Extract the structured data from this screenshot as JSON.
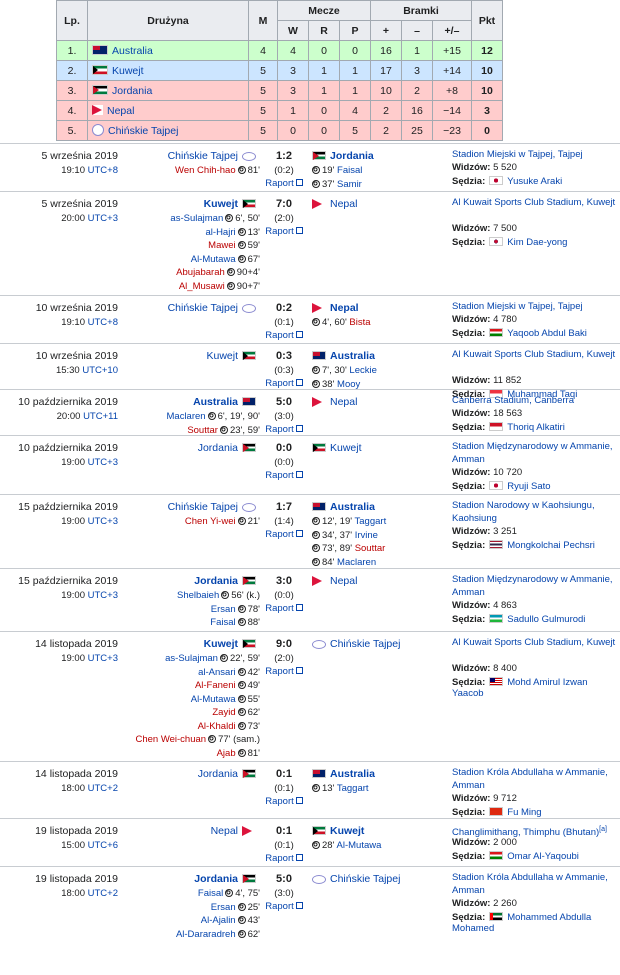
{
  "standings": {
    "headers": {
      "lp": "Lp.",
      "team": "Drużyna",
      "m": "M",
      "mecze": "Mecze",
      "w": "W",
      "r": "R",
      "p": "P",
      "bramki": "Bramki",
      "plus": "+",
      "minus": "–",
      "diff": "+/–",
      "pkt": "Pkt"
    },
    "rows": [
      {
        "lp": "1.",
        "team": "Australia",
        "flag": "aus",
        "m": "4",
        "w": "4",
        "r": "0",
        "p": "0",
        "gf": "16",
        "ga": "1",
        "diff": "+15",
        "pkt": "12",
        "color": "#ccffcc"
      },
      {
        "lp": "2.",
        "team": "Kuwejt",
        "flag": "kuw",
        "m": "5",
        "w": "3",
        "r": "1",
        "p": "1",
        "gf": "17",
        "ga": "3",
        "diff": "+14",
        "pkt": "10",
        "color": "#cce5ff"
      },
      {
        "lp": "3.",
        "team": "Jordania",
        "flag": "jor",
        "m": "5",
        "w": "3",
        "r": "1",
        "p": "1",
        "gf": "10",
        "ga": "2",
        "diff": "+8",
        "pkt": "10",
        "color": "#ffcccc"
      },
      {
        "lp": "4.",
        "team": "Nepal",
        "flag": "nep",
        "m": "5",
        "w": "1",
        "r": "0",
        "p": "4",
        "gf": "2",
        "ga": "16",
        "diff": "−14",
        "pkt": "3",
        "color": "#ffcccc"
      },
      {
        "lp": "5.",
        "team": "Chińskie Tajpej",
        "flag": "tpe",
        "m": "5",
        "w": "0",
        "r": "0",
        "p": "5",
        "gf": "2",
        "ga": "25",
        "diff": "−23",
        "pkt": "0",
        "color": "#ffcccc"
      }
    ]
  },
  "matches": [
    {
      "date": "5 września 2019",
      "time": "19:10",
      "tz": "UTC+8",
      "home": "Chińskie Tajpej",
      "home_flag": "tpe",
      "home_bold": false,
      "away": "Jordania",
      "away_flag": "jor",
      "away_bold": true,
      "score": "1:2",
      "ht": "(0:2)",
      "report": "Raport",
      "home_scorers": [
        {
          "name": "Wen Chih-hao",
          "min": "81'",
          "red": true
        }
      ],
      "away_scorers": [
        {
          "name": "Faisal",
          "min": "19'",
          "red": false
        },
        {
          "name": "Samir",
          "min": "37'",
          "red": false
        }
      ],
      "venue": "Stadion Miejski w Tajpej, Tajpej",
      "att_label": "Widzów:",
      "att": "5 520",
      "ref_label": "Sędzia:",
      "ref": "Yusuke Araki",
      "ref_flag": "jpn"
    },
    {
      "date": "5 września 2019",
      "time": "20:00",
      "tz": "UTC+3",
      "home": "Kuwejt",
      "home_flag": "kuw",
      "home_bold": true,
      "away": "Nepal",
      "away_flag": "nep",
      "away_bold": false,
      "score": "7:0",
      "ht": "(2:0)",
      "report": "Raport",
      "home_scorers": [
        {
          "name": "as-Sulajman",
          "min": "6', 50'",
          "red": false
        },
        {
          "name": "al-Hajri",
          "min": "13'",
          "red": false
        },
        {
          "name": "Mawei",
          "min": "59'",
          "red": true
        },
        {
          "name": "Al-Mutawa",
          "min": "67'",
          "red": false
        },
        {
          "name": "Abujabarah",
          "min": "90+4'",
          "red": true
        },
        {
          "name": "Al_Musawi",
          "min": "90+7'",
          "red": true
        }
      ],
      "away_scorers": [],
      "venue": "Al Kuwait Sports Club Stadium, Kuwejt",
      "att_label": "Widzów:",
      "att": "7 500",
      "ref_label": "Sędzia:",
      "ref": "Kim Dae-yong",
      "ref_flag": "kor"
    },
    {
      "date": "10 września 2019",
      "time": "19:10",
      "tz": "UTC+8",
      "home": "Chińskie Tajpej",
      "home_flag": "tpe",
      "home_bold": false,
      "away": "Nepal",
      "away_flag": "nep",
      "away_bold": true,
      "score": "0:2",
      "ht": "(0:1)",
      "report": "Raport",
      "home_scorers": [],
      "away_scorers": [
        {
          "name": "Bista",
          "min": "4', 60'",
          "red": true
        }
      ],
      "venue": "Stadion Miejski w Tajpej, Tajpej",
      "att_label": "Widzów:",
      "att": "4 780",
      "ref_label": "Sędzia:",
      "ref": "Yaqoob Abdul Baki",
      "ref_flag": "oma"
    },
    {
      "date": "10 września 2019",
      "time": "15:30",
      "tz": "UTC+10",
      "home": "Kuwejt",
      "home_flag": "kuw",
      "home_bold": false,
      "away": "Australia",
      "away_flag": "aus",
      "away_bold": true,
      "score": "0:3",
      "ht": "(0:3)",
      "report": "Raport",
      "home_scorers": [],
      "away_scorers": [
        {
          "name": "Leckie",
          "min": "7', 30'",
          "red": false
        },
        {
          "name": "Mooy",
          "min": "38'",
          "red": false
        }
      ],
      "venue": "Al Kuwait Sports Club Stadium, Kuwejt",
      "att_label": "Widzów:",
      "att": "11 852",
      "ref_label": "Sędzia:",
      "ref": "Muhammad Taqi",
      "ref_flag": "sgp"
    },
    {
      "date": "10 października 2019",
      "time": "20:00",
      "tz": "UTC+11",
      "home": "Australia",
      "home_flag": "aus",
      "home_bold": true,
      "away": "Nepal",
      "away_flag": "nep",
      "away_bold": false,
      "score": "5:0",
      "ht": "(3:0)",
      "report": "Raport",
      "home_scorers": [
        {
          "name": "Maclaren",
          "min": "6', 19', 90'",
          "red": false
        },
        {
          "name": "Souttar",
          "min": "23', 59'",
          "red": true
        }
      ],
      "away_scorers": [],
      "venue": "Canberra Stadium, Canberra",
      "att_label": "Widzów:",
      "att": "18 563",
      "ref_label": "Sędzia:",
      "ref": "Thoriq Alkatiri",
      "ref_flag": "idn"
    },
    {
      "date": "10 października 2019",
      "time": "19:00",
      "tz": "UTC+3",
      "home": "Jordania",
      "home_flag": "jor",
      "home_bold": false,
      "away": "Kuwejt",
      "away_flag": "kuw",
      "away_bold": false,
      "score": "0:0",
      "ht": "(0:0)",
      "report": "Raport",
      "home_scorers": [],
      "away_scorers": [],
      "venue": "Stadion Międzynarodowy w Ammanie, Amman",
      "att_label": "Widzów:",
      "att": "10 720",
      "ref_label": "Sędzia:",
      "ref": "Ryuji Sato",
      "ref_flag": "jpn"
    },
    {
      "date": "15 października 2019",
      "time": "19:00",
      "tz": "UTC+3",
      "home": "Chińskie Tajpej",
      "home_flag": "tpe",
      "home_bold": false,
      "away": "Australia",
      "away_flag": "aus",
      "away_bold": true,
      "score": "1:7",
      "ht": "(1:4)",
      "report": "Raport",
      "home_scorers": [
        {
          "name": "Chen Yi-wei",
          "min": "21'",
          "red": true
        }
      ],
      "away_scorers": [
        {
          "name": "Taggart",
          "min": "12', 19'",
          "red": false
        },
        {
          "name": "Irvine",
          "min": "34', 37'",
          "red": false
        },
        {
          "name": "Souttar",
          "min": "73', 89'",
          "red": true
        },
        {
          "name": "Maclaren",
          "min": "84'",
          "red": false
        }
      ],
      "venue": "Stadion Narodowy w Kaohsiungu, Kaohsiung",
      "att_label": "Widzów:",
      "att": "3 251",
      "ref_label": "Sędzia:",
      "ref": "Mongkolchai Pechsri",
      "ref_flag": "tha"
    },
    {
      "date": "15 października 2019",
      "time": "19:00",
      "tz": "UTC+3",
      "home": "Jordania",
      "home_flag": "jor",
      "home_bold": true,
      "away": "Nepal",
      "away_flag": "nep",
      "away_bold": false,
      "score": "3:0",
      "ht": "(0:0)",
      "report": "Raport",
      "home_scorers": [
        {
          "name": "Shelbaieh",
          "min": "56' (k.)",
          "red": false
        },
        {
          "name": "Ersan",
          "min": "78'",
          "red": false
        },
        {
          "name": "Faisal",
          "min": "88'",
          "red": false
        }
      ],
      "away_scorers": [],
      "venue": "Stadion Międzynarodowy w Ammanie, Amman",
      "att_label": "Widzów:",
      "att": "4 863",
      "ref_label": "Sędzia:",
      "ref": "Sadullo Gulmurodi",
      "ref_flag": "uzb"
    },
    {
      "date": "14 listopada 2019",
      "time": "19:00",
      "tz": "UTC+3",
      "home": "Kuwejt",
      "home_flag": "kuw",
      "home_bold": true,
      "away": "Chińskie Tajpej",
      "away_flag": "tpe",
      "away_bold": false,
      "score": "9:0",
      "ht": "(2:0)",
      "report": "Raport",
      "home_scorers": [
        {
          "name": "as-Sulajman",
          "min": "22', 59'",
          "red": false
        },
        {
          "name": "al-Ansari",
          "min": "42'",
          "red": false
        },
        {
          "name": "Al-Faneni",
          "min": "49'",
          "red": true
        },
        {
          "name": "Al-Mutawa",
          "min": "55'",
          "red": false
        },
        {
          "name": "Zayid",
          "min": "62'",
          "red": true
        },
        {
          "name": "Al-Khaldi",
          "min": "73'",
          "red": true
        },
        {
          "name": "Chen Wei-chuan",
          "min": "77' (sam.)",
          "red": true
        },
        {
          "name": "Ajab",
          "min": "81'",
          "red": true
        }
      ],
      "away_scorers": [],
      "venue": "Al Kuwait Sports Club Stadium, Kuwejt",
      "att_label": "Widzów:",
      "att": "8 400",
      "ref_label": "Sędzia:",
      "ref": "Mohd Amirul Izwan Yaacob",
      "ref_flag": "mys"
    },
    {
      "date": "14 listopada 2019",
      "time": "18:00",
      "tz": "UTC+2",
      "home": "Jordania",
      "home_flag": "jor",
      "home_bold": false,
      "away": "Australia",
      "away_flag": "aus",
      "away_bold": true,
      "score": "0:1",
      "ht": "(0:1)",
      "report": "Raport",
      "home_scorers": [],
      "away_scorers": [
        {
          "name": "Taggart",
          "min": "13'",
          "red": false
        }
      ],
      "venue": "Stadion Króla Abdullaha w Ammanie, Amman",
      "att_label": "Widzów:",
      "att": "9 712",
      "ref_label": "Sędzia:",
      "ref": "Fu Ming",
      "ref_flag": "chn"
    },
    {
      "date": "19 listopada 2019",
      "time": "15:00",
      "tz": "UTC+6",
      "home": "Nepal",
      "home_flag": "nep",
      "home_bold": false,
      "away": "Kuwejt",
      "away_flag": "kuw",
      "away_bold": true,
      "score": "0:1",
      "ht": "(0:1)",
      "report": "Raport",
      "home_scorers": [],
      "away_scorers": [
        {
          "name": "Al-Mutawa",
          "min": "28'",
          "red": false
        }
      ],
      "venue": "Changlimithang, Thimphu (Bhutan)",
      "venue_note": "[a]",
      "att_label": "Widzów:",
      "att": "2 000",
      "ref_label": "Sędzia:",
      "ref": "Omar Al-Yaqoubi",
      "ref_flag": "oma"
    },
    {
      "date": "19 listopada 2019",
      "time": "18:00",
      "tz": "UTC+2",
      "home": "Jordania",
      "home_flag": "jor",
      "home_bold": true,
      "away": "Chińskie Tajpej",
      "away_flag": "tpe",
      "away_bold": false,
      "score": "5:0",
      "ht": "(3:0)",
      "report": "Raport",
      "home_scorers": [
        {
          "name": "Faisal",
          "min": "4', 75'",
          "red": false
        },
        {
          "name": "Ersan",
          "min": "25'",
          "red": false
        },
        {
          "name": "Al-Ajalin",
          "min": "43'",
          "red": false
        },
        {
          "name": "Al-Dararadreh",
          "min": "62'",
          "red": false
        }
      ],
      "away_scorers": [],
      "venue": "Stadion Króla Abdullaha w Ammanie, Amman",
      "att_label": "Widzów:",
      "att": "2 260",
      "ref_label": "Sędzia:",
      "ref": "Mohammed Abdulla Mohamed",
      "ref_flag": "uae"
    }
  ]
}
